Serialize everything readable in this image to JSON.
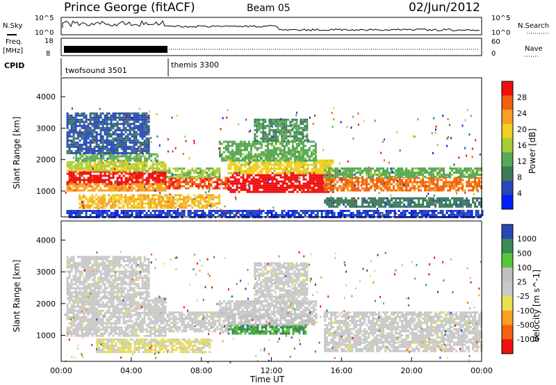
{
  "header": {
    "title": "Prince George (fitACF)",
    "beam": "Beam 05",
    "date": "02/Jun/2012"
  },
  "top_panels": {
    "nsky_label": "N.Sky",
    "nsearch_label": "N.Search",
    "noise_ticks_left": [
      "10^5",
      "10^0"
    ],
    "noise_ticks_right": [
      "10^5",
      "10^0"
    ],
    "freq_label_1": "Freq.",
    "freq_label_2": "[MHz]",
    "freq_ticks": [
      "18",
      "8"
    ],
    "nave_label": "Nave",
    "nave_ticks": [
      "60",
      "0"
    ],
    "cpid_label": "CPID",
    "cpid_segments": [
      {
        "name": "twofsound 3501",
        "start_h": 0,
        "end_h": 6
      },
      {
        "name": "themis 3300",
        "start_h": 6,
        "end_h": 24
      }
    ]
  },
  "chart_data": [
    {
      "type": "heatmap",
      "title": "",
      "xlabel": "Time UT",
      "ylabel": "Slant Range [km]",
      "x_ticks": [
        "00:00",
        "04:00",
        "08:00",
        "12:00",
        "16:00",
        "20:00",
        "00:00"
      ],
      "xlim_hours": [
        0,
        24
      ],
      "y_ticks": [
        "1000",
        "2000",
        "3000",
        "4000"
      ],
      "ylim_km": [
        180,
        4600
      ],
      "colorbar": {
        "label": "Power [dB]",
        "ticks": [
          "28",
          "24",
          "20",
          "16",
          "12",
          "8",
          "4"
        ],
        "range": [
          0,
          30
        ],
        "colors": [
          "#0020ff",
          "#2848b8",
          "#3c7a58",
          "#58a85a",
          "#a8cc38",
          "#f0d020",
          "#f8a020",
          "#f06010",
          "#f01010"
        ]
      },
      "bands": [
        {
          "t0": 0.3,
          "t1": 6,
          "r0": 1250,
          "r1": 1650,
          "value": 28
        },
        {
          "t0": 0.3,
          "t1": 6,
          "r0": 1000,
          "r1": 1250,
          "value": 22
        },
        {
          "t0": 0.3,
          "t1": 6,
          "r0": 1650,
          "r1": 1950,
          "value": 16
        },
        {
          "t0": 0.8,
          "t1": 5.5,
          "r0": 1950,
          "r1": 2200,
          "value": 12
        },
        {
          "t0": 0.3,
          "t1": 5,
          "r0": 2200,
          "r1": 3500,
          "value": 6
        },
        {
          "t0": 1,
          "t1": 9,
          "r0": 500,
          "r1": 900,
          "value": 20
        },
        {
          "t0": 6,
          "t1": 9.5,
          "r0": 1100,
          "r1": 1450,
          "value": 26
        },
        {
          "t0": 6,
          "t1": 9,
          "r0": 1450,
          "r1": 1750,
          "value": 14
        },
        {
          "t0": 9.5,
          "t1": 15.5,
          "r0": 1000,
          "r1": 1600,
          "value": 29
        },
        {
          "t0": 9.5,
          "t1": 15.5,
          "r0": 1600,
          "r1": 2000,
          "value": 18
        },
        {
          "t0": 9,
          "t1": 14.5,
          "r0": 2000,
          "r1": 2600,
          "value": 12
        },
        {
          "t0": 11,
          "t1": 14,
          "r0": 2600,
          "r1": 3300,
          "value": 10
        },
        {
          "t0": 15,
          "t1": 24,
          "r0": 1050,
          "r1": 1450,
          "value": 24
        },
        {
          "t0": 15,
          "t1": 24,
          "r0": 1450,
          "r1": 1750,
          "value": 12
        },
        {
          "t0": 15,
          "t1": 24,
          "r0": 500,
          "r1": 800,
          "value": 8
        },
        {
          "t0": 0.3,
          "t1": 24,
          "r0": 200,
          "r1": 400,
          "value": 4
        }
      ]
    },
    {
      "type": "heatmap",
      "title": "",
      "xlabel": "Time UT",
      "ylabel": "Slant Range [km]",
      "x_ticks": [
        "00:00",
        "04:00",
        "08:00",
        "12:00",
        "16:00",
        "20:00",
        "00:00"
      ],
      "xlim_hours": [
        0,
        24
      ],
      "y_ticks": [
        "1000",
        "2000",
        "3000",
        "4000"
      ],
      "ylim_km": [
        180,
        4600
      ],
      "colorbar": {
        "label": "Velocity [m s^-1]",
        "ticks": [
          "1000",
          "500",
          "100",
          "25",
          "-25",
          "-100",
          "-500",
          "-1000"
        ],
        "range": [
          -1200,
          1200
        ],
        "colors": [
          "#f01010",
          "#f86010",
          "#f8a020",
          "#e8e050",
          "#c8c8c8",
          "#c0c0c0",
          "#58c838",
          "#3c8a58",
          "#2848b8"
        ]
      },
      "bands": [
        {
          "t0": 0.3,
          "t1": 6,
          "r0": 1000,
          "r1": 2200,
          "value": 0
        },
        {
          "t0": 0.3,
          "t1": 5,
          "r0": 2200,
          "r1": 3500,
          "value": 0
        },
        {
          "t0": 6,
          "t1": 9.5,
          "r0": 1100,
          "r1": 1750,
          "value": 0
        },
        {
          "t0": 2,
          "t1": 8.5,
          "r0": 500,
          "r1": 900,
          "value": -150
        },
        {
          "t0": 9.5,
          "t1": 14,
          "r0": 1050,
          "r1": 1350,
          "value": 700
        },
        {
          "t0": 9.5,
          "t1": 14.5,
          "r0": 1350,
          "r1": 1700,
          "value": 200
        },
        {
          "t0": 9,
          "t1": 14.5,
          "r0": 1700,
          "r1": 2100,
          "value": 60
        },
        {
          "t0": 11,
          "t1": 14,
          "r0": 2100,
          "r1": 3300,
          "value": 0
        },
        {
          "t0": 15,
          "t1": 24,
          "r0": 800,
          "r1": 1750,
          "value": 0
        },
        {
          "t0": 15,
          "t1": 24,
          "r0": 500,
          "r1": 800,
          "value": 0
        }
      ]
    }
  ]
}
